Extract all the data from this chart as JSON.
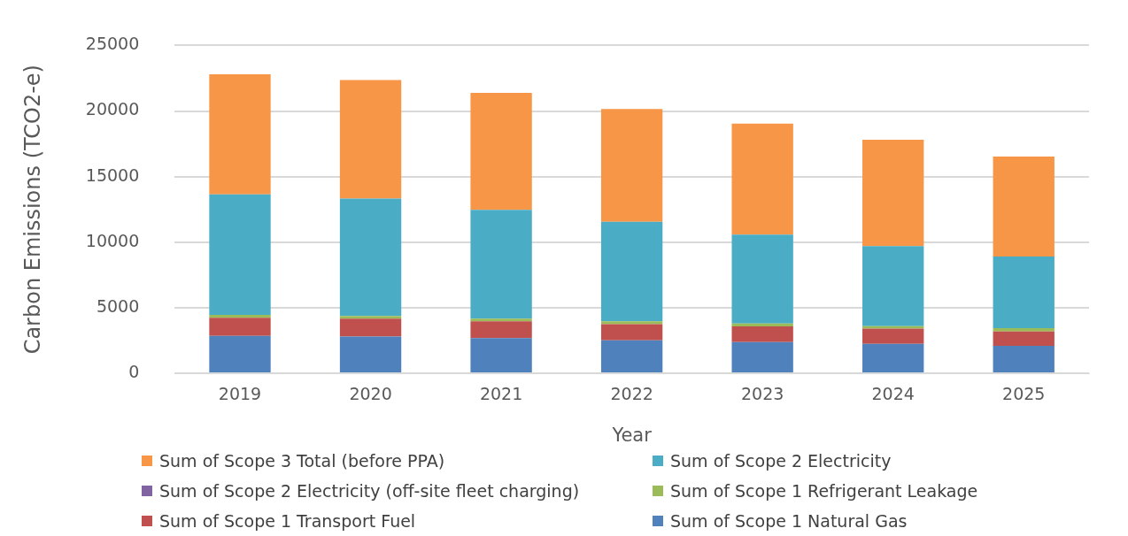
{
  "chart_data": {
    "type": "bar",
    "stacked": true,
    "xlabel": "Year",
    "ylabel": "Carbon Emissions (TCO2-e)",
    "categories": [
      "2019",
      "2020",
      "2021",
      "2022",
      "2023",
      "2024",
      "2025"
    ],
    "series": [
      {
        "name": "Sum of Scope 1 Natural Gas",
        "color": "#4f81bd",
        "values": [
          2850,
          2800,
          2680,
          2520,
          2380,
          2250,
          2090
        ]
      },
      {
        "name": "Sum of Scope 1 Transport Fuel",
        "color": "#c0504d",
        "values": [
          1390,
          1370,
          1280,
          1230,
          1200,
          1150,
          1100
        ]
      },
      {
        "name": "Sum of Scope 1 Refrigerant Leakage",
        "color": "#9bbb59",
        "values": [
          210,
          190,
          210,
          210,
          210,
          200,
          250
        ]
      },
      {
        "name": "Sum of Scope 2 Electricity (off-site fleet charging)",
        "color": "#8064a2",
        "values": [
          0,
          0,
          0,
          0,
          0,
          0,
          0
        ]
      },
      {
        "name": "Sum of Scope 2 Electricity",
        "color": "#4bacc6",
        "values": [
          9190,
          8970,
          8300,
          7590,
          6780,
          6100,
          5470
        ]
      },
      {
        "name": "Sum of Scope 3 Total (before PPA)",
        "color": "#f79646",
        "values": [
          9160,
          9030,
          8910,
          8600,
          8470,
          8110,
          7610
        ]
      }
    ],
    "ylim": [
      0,
      25000
    ],
    "yticks": [
      0,
      5000,
      10000,
      15000,
      20000,
      25000
    ],
    "grid": "y",
    "legend": "bottom"
  }
}
